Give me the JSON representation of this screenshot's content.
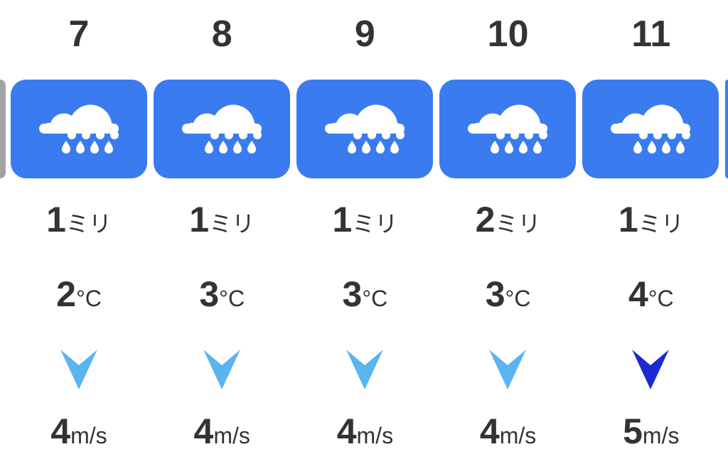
{
  "colors": {
    "card": "#3a7bf0",
    "card_past": "#a3a3a3",
    "wind_normal": "#5ab4f0",
    "wind_strong": "#1a2bd2"
  },
  "units": {
    "precip": "ミリ",
    "temp": "°C",
    "wind": "m/s"
  },
  "hours": [
    {
      "hour": "7",
      "icon": "rain-icon",
      "precip": "1",
      "temp": "2",
      "wind": "4",
      "wind_level": "normal"
    },
    {
      "hour": "8",
      "icon": "rain-icon",
      "precip": "1",
      "temp": "3",
      "wind": "4",
      "wind_level": "normal"
    },
    {
      "hour": "9",
      "icon": "rain-icon",
      "precip": "1",
      "temp": "3",
      "wind": "4",
      "wind_level": "normal"
    },
    {
      "hour": "10",
      "icon": "rain-icon",
      "precip": "2",
      "temp": "3",
      "wind": "4",
      "wind_level": "normal"
    },
    {
      "hour": "11",
      "icon": "rain-icon",
      "precip": "1",
      "temp": "4",
      "wind": "5",
      "wind_level": "strong"
    }
  ]
}
